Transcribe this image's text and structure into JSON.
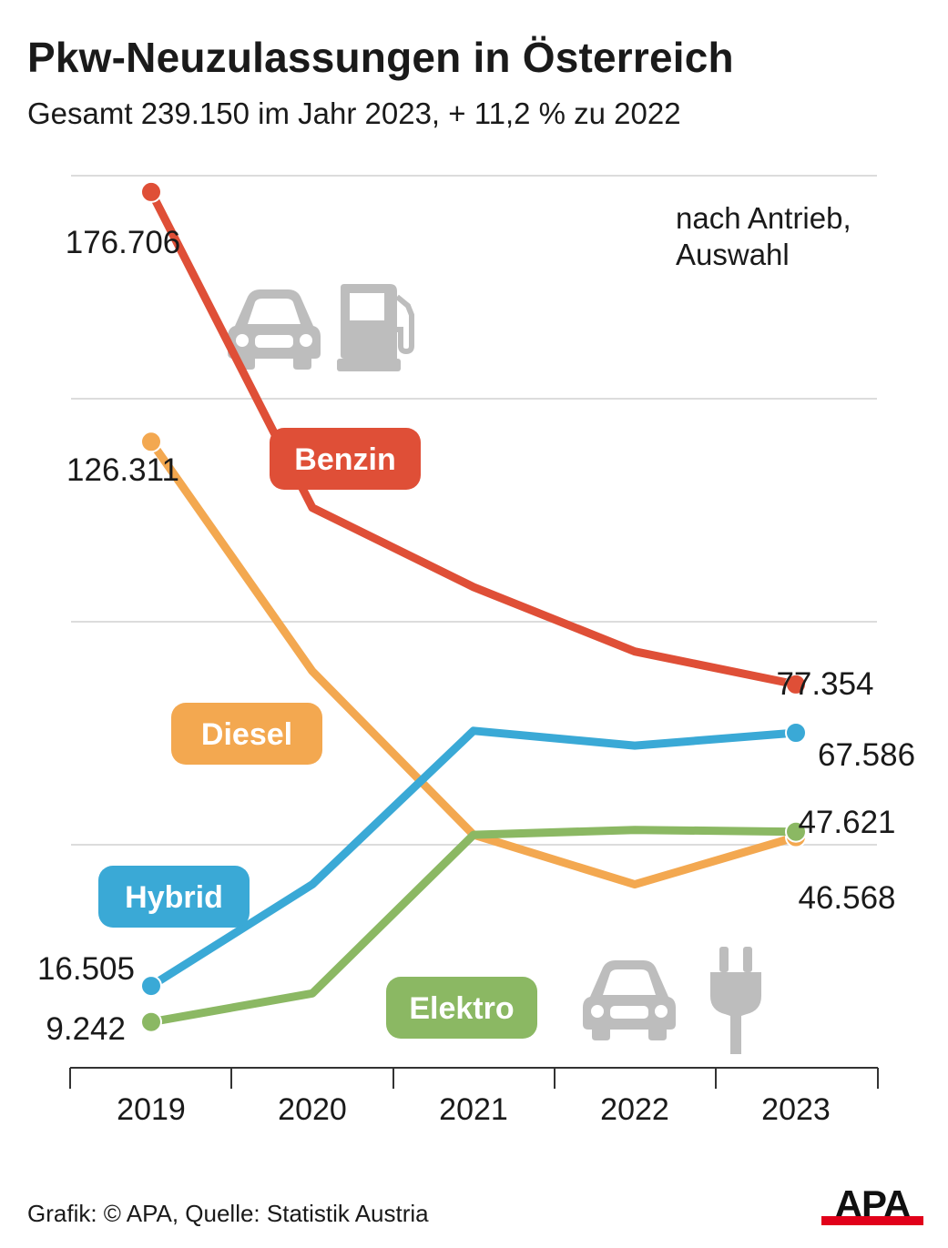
{
  "title": "Pkw-Neuzulassungen in Österreich",
  "subtitle": "Gesamt 239.150 im Jahr 2023, + 11,2 % zu 2022",
  "note_line1": "nach Antrieb,",
  "note_line2": "Auswahl",
  "footer": "Grafik: © APA, Quelle: Statistik Austria",
  "logo": {
    "text": "APA",
    "bar_color": "#e1001a"
  },
  "icons": [
    "car-icon",
    "fuel-pump-icon",
    "plug-icon"
  ],
  "chart_data": {
    "type": "line",
    "x": [
      "2019",
      "2020",
      "2021",
      "2022",
      "2023"
    ],
    "ylim": [
      0,
      180000
    ],
    "grid": true,
    "series": [
      {
        "name": "Benzin",
        "color": "#df4f37",
        "values": [
          176706,
          113000,
          97000,
          84000,
          77354
        ],
        "first_label": "176.706",
        "last_label": "77.354"
      },
      {
        "name": "Diesel",
        "color": "#f3a850",
        "values": [
          126311,
          80000,
          47000,
          37000,
          46568
        ],
        "first_label": "126.311",
        "last_label": "46.568"
      },
      {
        "name": "Hybrid",
        "color": "#3aa9d6",
        "values": [
          16505,
          37000,
          68000,
          65000,
          67586
        ],
        "first_label": "16.505",
        "last_label": "67.586"
      },
      {
        "name": "Elektro",
        "color": "#8bb863",
        "values": [
          9242,
          15000,
          47000,
          48000,
          47621
        ],
        "first_label": "9.242",
        "last_label": "47.621"
      }
    ]
  }
}
